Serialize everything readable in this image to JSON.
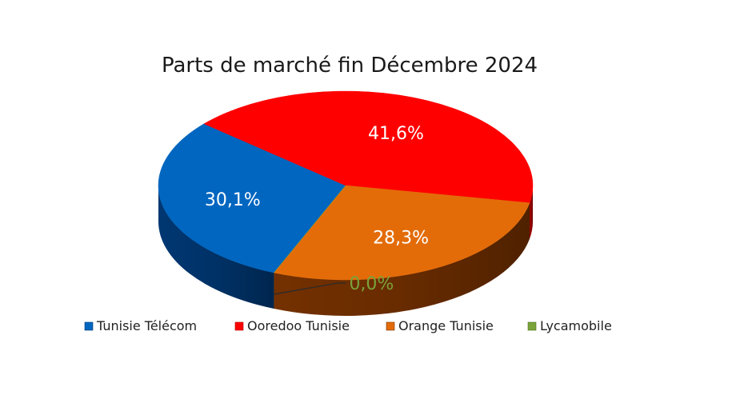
{
  "chart_data": {
    "type": "pie",
    "title": "Parts de marché fin Décembre 2024",
    "slices": [
      {
        "name": "Tunisie Télécom",
        "value": 30.1,
        "label": "30,1%",
        "color": "#0066c0",
        "side_color": "#003a78"
      },
      {
        "name": "Ooredoo Tunisie",
        "value": 41.6,
        "label": "41,6%",
        "color": "#ff0000",
        "side_color": "#a80000"
      },
      {
        "name": "Orange Tunisie",
        "value": 28.3,
        "label": "28,3%",
        "color": "#e36c09",
        "side_color": "#7a3300"
      },
      {
        "name": "Lycamobile",
        "value": 0.0,
        "label": "0,0%",
        "color": "#7aa33a",
        "side_color": "#4e6e20"
      }
    ],
    "legend_position": "bottom",
    "three_d": true
  }
}
